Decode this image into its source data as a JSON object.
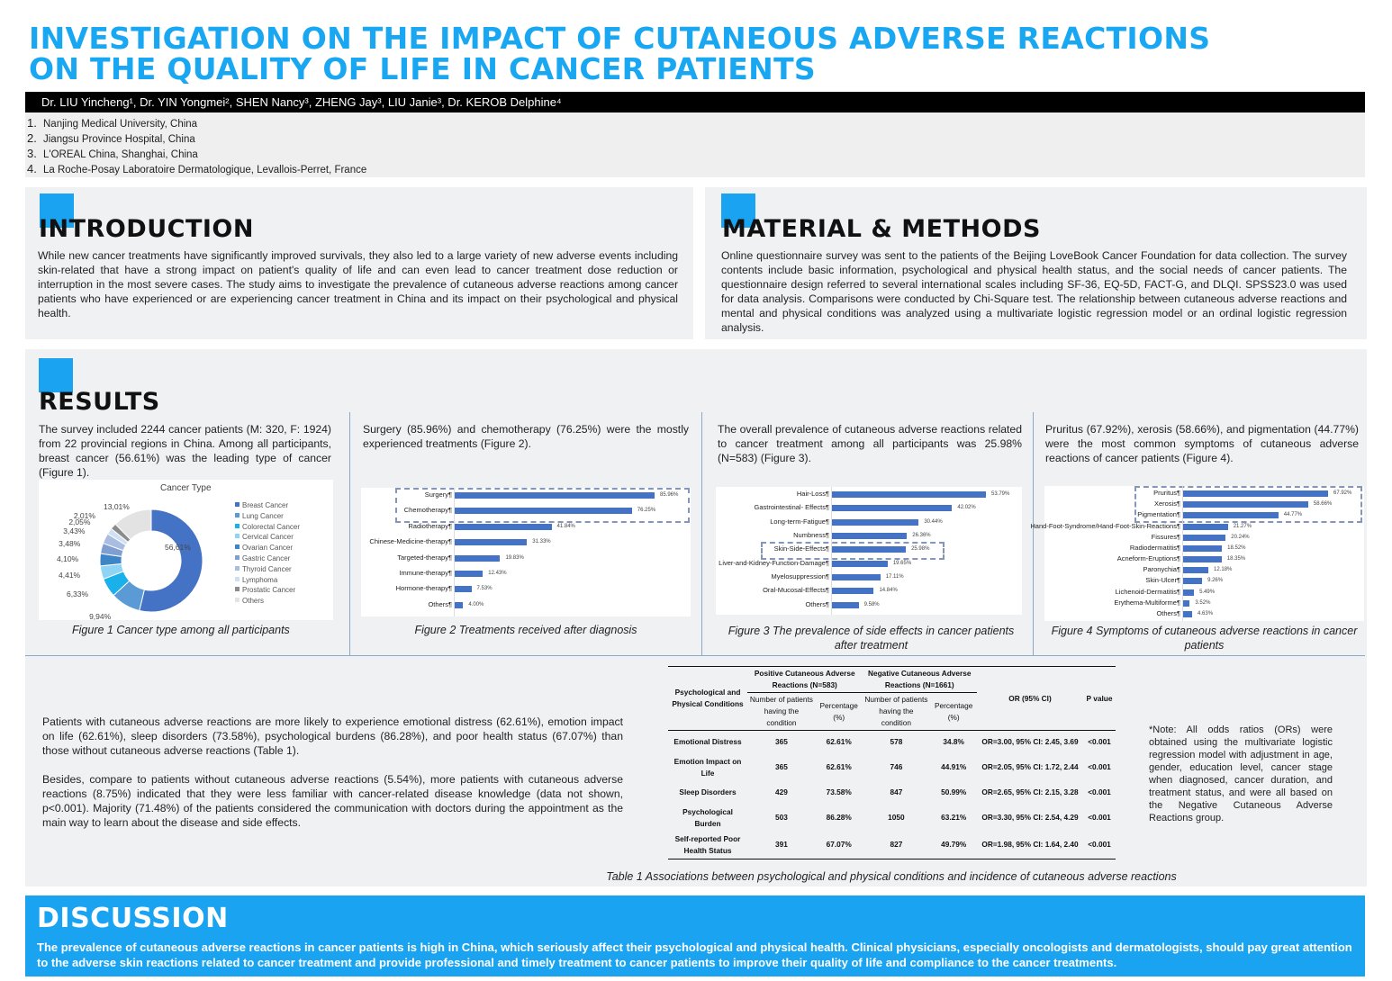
{
  "title": {
    "line1": "INVESTIGATION ON THE IMPACT OF CUTANEOUS ADVERSE REACTIONS",
    "line2": "ON THE QUALITY OF LIFE IN CANCER PATIENTS"
  },
  "authors": "Dr. LIU Yincheng¹, Dr. YIN Yongmei², SHEN Nancy³, ZHENG Jay³, LIU Janie³, Dr. KEROB Delphine⁴",
  "affiliations": [
    {
      "num": "1.",
      "text": "Nanjing Medical University, China"
    },
    {
      "num": "2.",
      "text": "Jiangsu Province Hospital, China"
    },
    {
      "num": "3.",
      "text": "L'OREAL China, Shanghai, China"
    },
    {
      "num": "4.",
      "text": "La Roche-Posay Laboratoire Dermatologique, Levallois-Perret, France"
    }
  ],
  "introduction": {
    "heading": "INTRODUCTION",
    "text": "While new cancer treatments have significantly improved survivals, they also led to a large variety of new adverse events including skin-related that have a strong impact on patient's quality of life and can even lead to cancer treatment dose reduction or interruption in the most severe cases. The study aims to investigate the prevalence of cutaneous adverse reactions among cancer patients who have experienced or are experiencing cancer treatment in China and its impact on their psychological and physical health."
  },
  "methods": {
    "heading": "MATERIAL & METHODS",
    "text": "Online questionnaire survey was sent to the patients of the Beijing LoveBook Cancer Foundation for data collection. The survey contents include basic information, psychological and physical health status, and the social needs of cancer patients. The questionnaire design referred to several international scales including SF-36, EQ-5D, FACT-G, and DLQI. SPSS23.0 was used for data analysis. Comparisons were conducted by Chi-Square test. The relationship between cutaneous adverse reactions and mental and physical conditions was analyzed using a multivariate logistic regression model or an ordinal logistic regression analysis."
  },
  "results": {
    "heading": "RESULTS",
    "col1_text": "The survey included 2244 cancer patients (M: 320, F: 1924) from 22 provincial regions in China. Among all participants, breast cancer (56.61%) was the leading type of cancer (Figure 1).",
    "col2_text": "Surgery (85.96%) and chemotherapy (76.25%) were the mostly experienced treatments (Figure 2).",
    "col3_text": "The overall prevalence of cutaneous adverse reactions related to cancer treatment among all participants was 25.98% (N=583) (Figure 3).",
    "col4_text": "Pruritus (67.92%), xerosis (58.66%), and pigmentation (44.77%) were the most common symptoms of cutaneous adverse reactions of cancer patients (Figure 4).",
    "para_a": "Patients with cutaneous adverse reactions are more likely to experience emotional distress (62.61%), emotion impact on life (62.61%), sleep disorders (73.58%), psychological burdens (86.28%), and poor health status (67.07%) than those without cutaneous adverse reactions (Table 1).",
    "para_b": "Besides, compare to patients without cutaneous adverse reactions (5.54%), more patients with cutaneous adverse reactions (8.75%) indicated that they were less familiar with cancer-related disease knowledge (data not shown, p<0.001). Majority (71.48%) of the patients considered the communication with doctors during the appointment as the main way to learn about the disease and side effects.",
    "fig1_caption_label": "Figure 1",
    "fig1_caption": " Cancer type among all participants",
    "fig2_caption_label": "Figure 2",
    "fig2_caption": " Treatments received after diagnosis",
    "fig3_caption_label": "Figure 3",
    "fig3_caption": " The prevalence of side effects in cancer patients after treatment",
    "fig4_caption_label": "Figure 4",
    "fig4_caption": " Symptoms of cutaneous adverse reactions in cancer patients",
    "table_caption_label": "Table 1",
    "table_caption": " Associations between psychological and physical conditions and incidence of cutaneous adverse reactions",
    "note": "*Note: All odds ratios (ORs) were obtained using the multivariate logistic regression model with adjustment in age, gender, education level, cancer stage when diagnosed, cancer duration, and treatment status, and were all based on the Negative Cutaneous Adverse Reactions group."
  },
  "table": {
    "head": {
      "condition": "Psychological and Physical Conditions",
      "positive": "Positive Cutaneous Adverse Reactions (N=583)",
      "negative": "Negative Cutaneous Adverse Reactions (N=1661)",
      "number": "Number of patients having the condition",
      "percentage": "Percentage (%)",
      "or": "OR (95% CI)",
      "p": "P value"
    },
    "rows": [
      [
        "Emotional Distress",
        "365",
        "62.61%",
        "578",
        "34.8%",
        "OR=3.00, 95% CI: 2.45, 3.69",
        "<0.001"
      ],
      [
        "Emotion Impact on Life",
        "365",
        "62.61%",
        "746",
        "44.91%",
        "OR=2.05, 95% CI: 1.72, 2.44",
        "<0.001"
      ],
      [
        "Sleep Disorders",
        "429",
        "73.58%",
        "847",
        "50.99%",
        "OR=2.65, 95% CI: 2.15, 3.28",
        "<0.001"
      ],
      [
        "Psychological Burden",
        "503",
        "86.28%",
        "1050",
        "63.21%",
        "OR=3.30, 95% CI: 2.54, 4.29",
        "<0.001"
      ],
      [
        "Self-reported Poor Health Status",
        "391",
        "67.07%",
        "827",
        "49.79%",
        "OR=1.98, 95% CI: 1.64, 2.40",
        "<0.001"
      ]
    ]
  },
  "discussion": {
    "heading": "DISCUSSION",
    "text": "The prevalence of cutaneous adverse reactions in cancer patients is high in China, which seriously affect their psychological and physical health. Clinical physicians, especially oncologists and dermatologists, should pay great attention to the adverse skin reactions related to cancer treatment and provide professional and timely treatment to cancer patients to improve their quality of life and compliance to the cancer treatments."
  },
  "colors": {
    "accent": "#19a3f1",
    "bar": "#4472c4",
    "panel": "#f0f1f3"
  },
  "chart_data": [
    {
      "type": "pie",
      "donut": true,
      "title": "Cancer Type",
      "legend": "right",
      "categories": [
        "Breast Cancer",
        "Lung Cancer",
        "Colorectal Cancer",
        "Cervical Cancer",
        "Ovarian Cancer",
        "Gastric Cancer",
        "Thyroid Cancer",
        "Lymphoma",
        "Prostatic Cancer",
        "Others"
      ],
      "values": [
        56.61,
        9.94,
        6.33,
        4.41,
        4.1,
        3.48,
        3.43,
        2.05,
        2.01,
        13.01
      ],
      "labels": [
        "56,61%",
        "9,94%",
        "6,33%",
        "4,41%",
        "4,10%",
        "3,48%",
        "3,43%",
        "2,05%",
        "2,01%",
        "13,01%"
      ],
      "colors": [
        "#4472c4",
        "#5b9bd5",
        "#1ab0ea",
        "#8fd3f5",
        "#3d85c6",
        "#7f9fd3",
        "#a9bde0",
        "#cfe0f3",
        "#8c8c8c",
        "#e3e3e3"
      ]
    },
    {
      "type": "bar",
      "orientation": "horizontal",
      "categories": [
        "Surgery¶",
        "Chemotherapy¶",
        "Radiotherapy¶",
        "Chinese-Medicine-therapy¶",
        "Targeted-therapy¶",
        "Immune-therapy¶",
        "Hormone-therapy¶",
        "Others¶"
      ],
      "values": [
        85.96,
        76.25,
        41.84,
        31.33,
        19.83,
        12.43,
        7.53,
        4.0
      ],
      "labels": [
        "85.96%",
        "76.25%",
        "41.84%",
        "31.33%",
        "19.83%",
        "12.43%",
        "7.53%",
        "4.00%"
      ],
      "highlighted": [
        "Surgery¶",
        "Chemotherapy¶"
      ]
    },
    {
      "type": "bar",
      "orientation": "horizontal",
      "categories": [
        "Hair-Loss¶",
        "Gastrointestinal- Effects¶",
        "Long-term-Fatigue¶",
        "Numbness¶",
        "Skin-Side-Effects¶",
        "Liver-and-Kidney-Function-Damage¶",
        "Myelosuppression¶",
        "Oral-Mucosal-Effects¶",
        "Others¶"
      ],
      "values": [
        53.79,
        42.02,
        30.44,
        26.36,
        25.98,
        19.65,
        17.11,
        14.84,
        9.58
      ],
      "labels": [
        "53.79%",
        "42.02%",
        "30.44%",
        "26.36%",
        "25.98%",
        "19.65%",
        "17.11%",
        "14.84%",
        "9.58%"
      ],
      "highlighted": [
        "Skin-Side-Effects¶"
      ]
    },
    {
      "type": "bar",
      "orientation": "horizontal",
      "categories": [
        "Pruritus¶",
        "Xerosis¶",
        "Pigmentation¶",
        "Hand-Foot-Syndrome/Hand-Foot-Skin-Reactions¶",
        "Fissures¶",
        "Radiodermatitis¶",
        "Acneform-Eruptions¶",
        "Paronychia¶",
        "Skin-Ulcer¶",
        "Lichenoid-Dermatitis¶",
        "Erythema-Multiforme¶",
        "Others¶"
      ],
      "values": [
        67.92,
        58.66,
        44.77,
        21.27,
        20.24,
        18.52,
        18.35,
        12.18,
        9.26,
        5.49,
        3.52,
        4.63
      ],
      "labels": [
        "67.92%",
        "58.66%",
        "44.77%",
        "21.27%",
        "20.24%",
        "18.52%",
        "18.35%",
        "12.18%",
        "9.26%",
        "5.49%",
        "3.52%",
        "4.63%"
      ],
      "highlighted": [
        "Pruritus¶",
        "Xerosis¶",
        "Pigmentation¶"
      ]
    }
  ]
}
